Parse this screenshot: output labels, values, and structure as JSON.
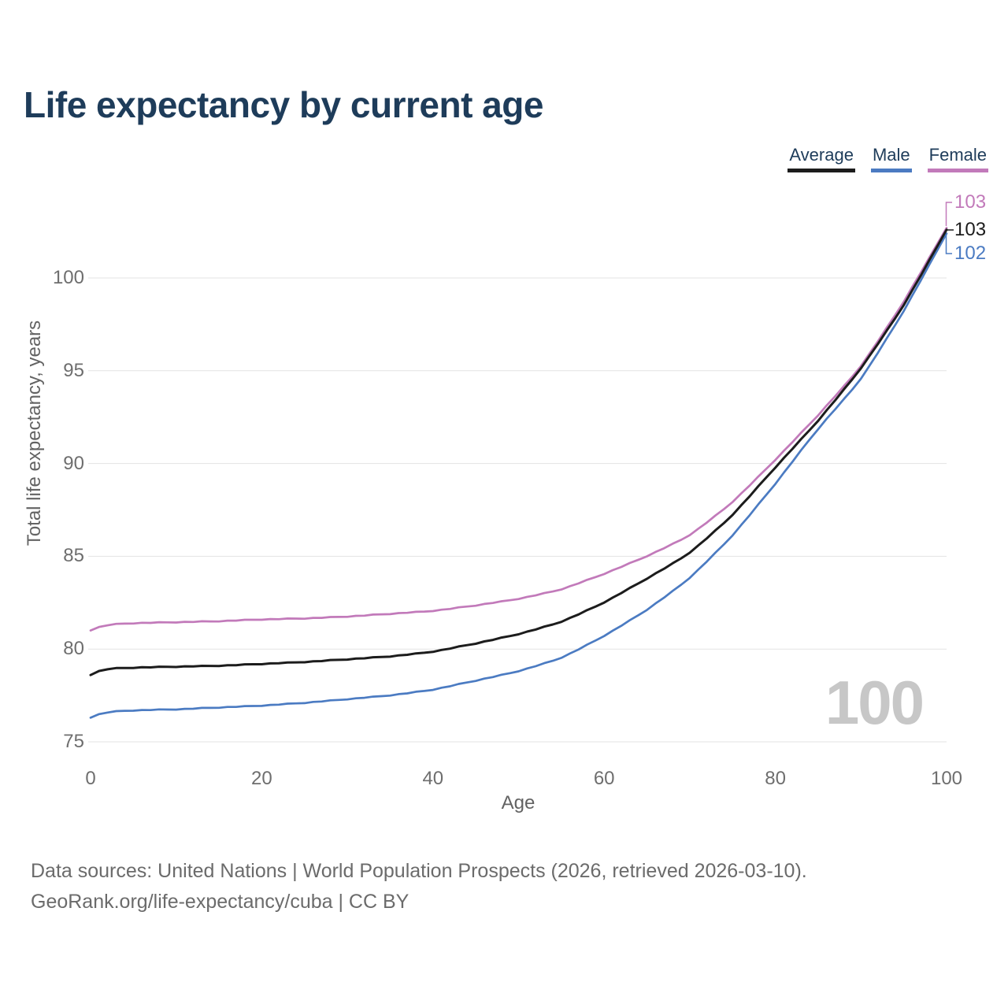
{
  "title": "Life expectancy by current age",
  "legend": {
    "items": [
      {
        "label": "Average",
        "color": "#1c1c1c"
      },
      {
        "label": "Male",
        "color": "#4b7bc2"
      },
      {
        "label": "Female",
        "color": "#c27aba"
      }
    ]
  },
  "watermark": "100",
  "footer": {
    "line1": "Data sources: United Nations | World Population Prospects (2026, retrieved 2026-03-10).",
    "line2": "GeoRank.org/life-expectancy/cuba | CC BY"
  },
  "chart_data": {
    "type": "line",
    "title": "Life expectancy by current age",
    "xlabel": "Age",
    "ylabel": "Total life expectancy, years",
    "xlim": [
      0,
      100
    ],
    "ylim": [
      75,
      103.5
    ],
    "xticks": [
      0,
      20,
      40,
      60,
      80,
      100
    ],
    "yticks": [
      75,
      80,
      85,
      90,
      95,
      100
    ],
    "grid": true,
    "legend_position": "top-right",
    "x": [
      0,
      1,
      5,
      10,
      15,
      20,
      25,
      30,
      35,
      40,
      45,
      50,
      55,
      60,
      65,
      70,
      75,
      80,
      85,
      90,
      95,
      100
    ],
    "series": [
      {
        "name": "Average",
        "color": "#1c1c1c",
        "end_label": "103",
        "values": [
          78.6,
          78.95,
          79.0,
          79.05,
          79.1,
          79.2,
          79.3,
          79.45,
          79.6,
          79.85,
          80.3,
          80.8,
          81.45,
          82.5,
          83.8,
          85.15,
          87.2,
          89.8,
          92.3,
          95.1,
          98.5,
          102.6
        ]
      },
      {
        "name": "Male",
        "color": "#4b7bc2",
        "end_label": "102",
        "values": [
          76.3,
          76.6,
          76.7,
          76.75,
          76.85,
          76.95,
          77.1,
          77.3,
          77.5,
          77.8,
          78.3,
          78.8,
          79.5,
          80.7,
          82.1,
          83.8,
          86.1,
          88.9,
          91.9,
          94.5,
          98.2,
          102.4
        ]
      },
      {
        "name": "Female",
        "color": "#c27aba",
        "end_label": "103",
        "values": [
          81.0,
          81.3,
          81.4,
          81.45,
          81.5,
          81.6,
          81.65,
          81.75,
          81.9,
          82.05,
          82.35,
          82.7,
          83.2,
          84.05,
          85.0,
          86.1,
          87.9,
          90.2,
          92.6,
          95.2,
          98.7,
          102.7
        ]
      }
    ]
  }
}
